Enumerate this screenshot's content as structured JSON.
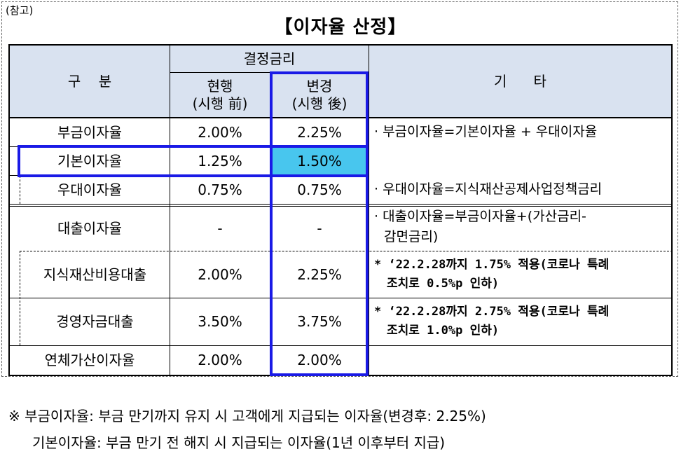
{
  "ref_tag": "(참고)",
  "title": "【이자율 산정】",
  "header": {
    "category": "구    분",
    "rate_group": "결정금리",
    "current": [
      "현행",
      "(시행 前)"
    ],
    "changed": [
      "변경",
      "(시행 後)"
    ],
    "other": "기      타"
  },
  "rows": [
    {
      "label": "부금이자율",
      "current": "2.00%",
      "changed": "2.25%"
    },
    {
      "label": "기본이자율",
      "current": "1.25%",
      "changed": "1.50%"
    },
    {
      "label": "우대이자율",
      "current": "0.75%",
      "changed": "0.75%"
    },
    {
      "label": "대출이자율",
      "current": "-",
      "changed": "-"
    },
    {
      "label": "지식재산비용대출",
      "current": "2.00%",
      "changed": "2.25%"
    },
    {
      "label": "경영자금대출",
      "current": "3.50%",
      "changed": "3.75%"
    },
    {
      "label": "연체가산이자율",
      "current": "2.00%",
      "changed": "2.00%"
    }
  ],
  "notes": {
    "n1": "· 부금이자율=기본이자율 + 우대이자율",
    "n3": "· 우대이자율=지식재산공제사업정책금리",
    "n4a": "· 대출이자율=부금이자율+(가산금리-",
    "n4b": "감면금리)",
    "n5a": "* ‘22.2.28까지 1.75% 적용(코로나 특례",
    "n5b": "조치로 0.5%p 인하)",
    "n6a": "* ‘22.2.28까지 2.75% 적용(코로나 특례",
    "n6b": "조치로 1.0%p 인하)"
  },
  "footnotes": {
    "line1": "※  부금이자율:  부금  만기까지  유지  시  고객에게  지급되는  이자율(변경후:  2.25%)",
    "line2": "기본이자율:  부금  만기  전  해지  시  지급되는  이자율(1년  이후부터  지급)"
  },
  "colors": {
    "header_bg": "#d9e2f0",
    "highlight": "#48c6ee",
    "box": "#1a1ae6"
  }
}
